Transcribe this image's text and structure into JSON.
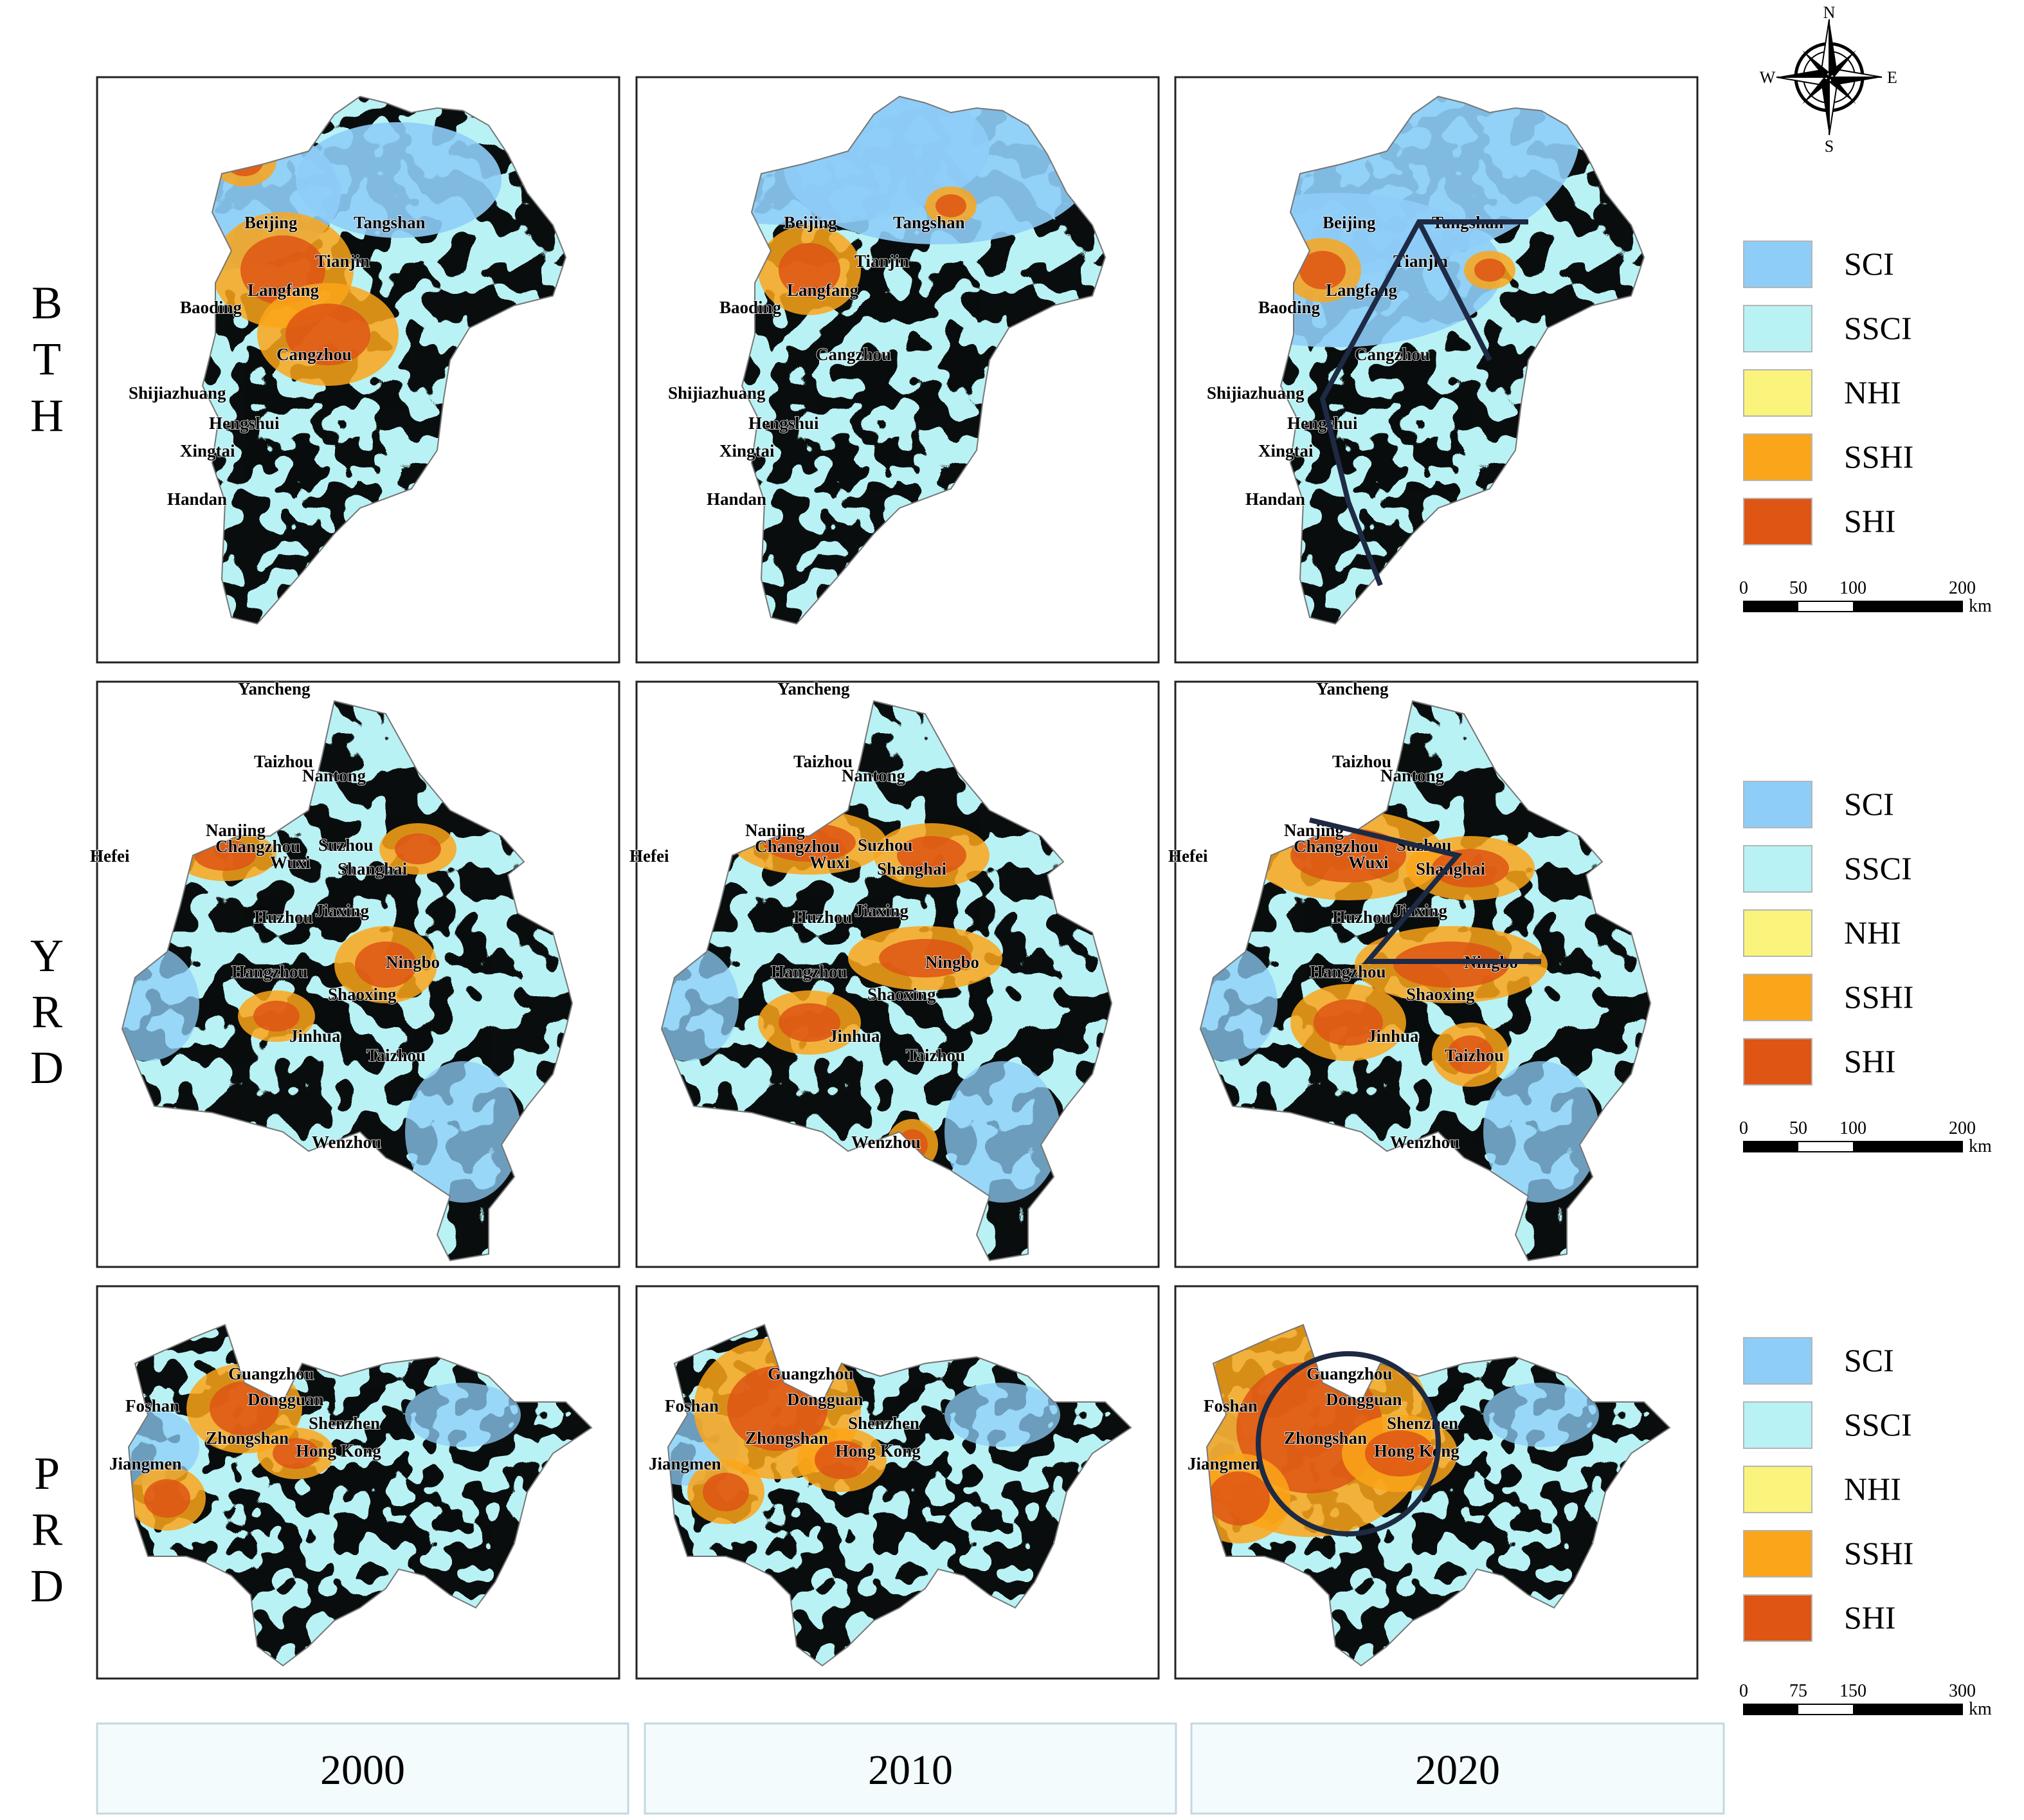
{
  "colors": {
    "SCI": "#8ECDF8",
    "SSCI": "#B9F2F4",
    "NHI": "#FAF47C",
    "SSHI": "#FBA61A",
    "SHI": "#DE5514",
    "boundary": "#777777",
    "axis_line": "#1E2A44"
  },
  "row_labels": [
    {
      "letters": [
        "B",
        "T",
        "H"
      ]
    },
    {
      "letters": [
        "Y",
        "R",
        "D"
      ]
    },
    {
      "letters": [
        "P",
        "R",
        "D"
      ]
    }
  ],
  "years": [
    "2000",
    "2010",
    "2020"
  ],
  "legend": [
    {
      "code": "SCI",
      "label": "SCI"
    },
    {
      "code": "SSCI",
      "label": "SSCI"
    },
    {
      "code": "NHI",
      "label": "NHI"
    },
    {
      "code": "SSHI",
      "label": "SSHI"
    },
    {
      "code": "SHI",
      "label": "SHI"
    }
  ],
  "legend_rows": [
    {
      "labels": [
        "SCI",
        "SSCI",
        "NHI",
        "SSHI",
        "SHI"
      ]
    },
    {
      "labels": [
        "SCI",
        "SSCI",
        "NHI",
        "SSHI",
        "SHI"
      ]
    },
    {
      "labels": [
        "SCI",
        "SSCI",
        "NHI",
        "SSHI",
        "SHI"
      ]
    }
  ],
  "scale_bars": [
    {
      "ticks": [
        "0",
        "50",
        "100",
        "200"
      ],
      "unit": "km"
    },
    {
      "ticks": [
        "0",
        "50",
        "100",
        "200"
      ],
      "unit": "km"
    },
    {
      "ticks": [
        "0",
        "75",
        "150",
        "300"
      ],
      "unit": "km"
    }
  ],
  "compass": {
    "n": "N",
    "s": "S",
    "e": "E",
    "w": "W"
  },
  "maps": [
    {
      "region": "BTH",
      "year": "2000",
      "cities": [
        "Beijing",
        "Tangshan",
        "Tianjin",
        "Langfang",
        "Baoding",
        "Cangzhou",
        "Shijiazhuang",
        "Hengshui",
        "Xingtai",
        "Handan"
      ]
    },
    {
      "region": "BTH",
      "year": "2010",
      "cities": [
        "Beijing",
        "Tangshan",
        "Tianjin",
        "Langfang",
        "Baoding",
        "Cangzhou",
        "Shijiazhuang",
        "Hengshui",
        "Xingtai",
        "Handan"
      ]
    },
    {
      "region": "BTH",
      "year": "2020",
      "cities": [
        "Beijing",
        "Tangshan",
        "Tianjin",
        "Langfang",
        "Baoding",
        "Cangzhou",
        "Shijiazhuang",
        "Hengshui",
        "Xingtai",
        "Handan"
      ]
    },
    {
      "region": "YRD",
      "year": "2000",
      "cities": [
        "Yancheng",
        "Taizhou",
        "Nantong",
        "Nanjing",
        "Changzhou",
        "Suzhou",
        "Wuxi",
        "Shanghai",
        "Hefei",
        "Huzhou",
        "Jiaxing",
        "Hangzhou",
        "Ningbo",
        "Shaoxing",
        "Jinhua",
        "Taizhou",
        "Wenzhou"
      ]
    },
    {
      "region": "YRD",
      "year": "2010",
      "cities": [
        "Yancheng",
        "Taizhou",
        "Nantong",
        "Nanjing",
        "Changzhou",
        "Suzhou",
        "Wuxi",
        "Shanghai",
        "Hefei",
        "Huzhou",
        "Jiaxing",
        "Hangzhou",
        "Ningbo",
        "Shaoxing",
        "Jinhua",
        "Taizhou",
        "Wenzhou"
      ]
    },
    {
      "region": "YRD",
      "year": "2020",
      "cities": [
        "Yancheng",
        "Taizhou",
        "Nantong",
        "Nanjing",
        "Changzhou",
        "Suzhou",
        "Wuxi",
        "Shanghai",
        "Hefei",
        "Huzhou",
        "Jiaxing",
        "Hangzhou",
        "Ningbo",
        "Shaoxing",
        "Jinhua",
        "Taizhou",
        "Wenzhou"
      ]
    },
    {
      "region": "PRD",
      "year": "2000",
      "cities": [
        "Guangzhou",
        "Foshan",
        "Dongguan",
        "Shenzhen",
        "Zhongshan",
        "Hong Kong",
        "Jiangmen"
      ]
    },
    {
      "region": "PRD",
      "year": "2010",
      "cities": [
        "Guangzhou",
        "Foshan",
        "Dongguan",
        "Shenzhen",
        "Zhongshan",
        "Hong Kong",
        "Jiangmen"
      ]
    },
    {
      "region": "PRD",
      "year": "2020",
      "cities": [
        "Guangzhou",
        "Foshan",
        "Dongguan",
        "Shenzhen",
        "Zhongshan",
        "Hong Kong",
        "Jiangmen"
      ]
    }
  ]
}
